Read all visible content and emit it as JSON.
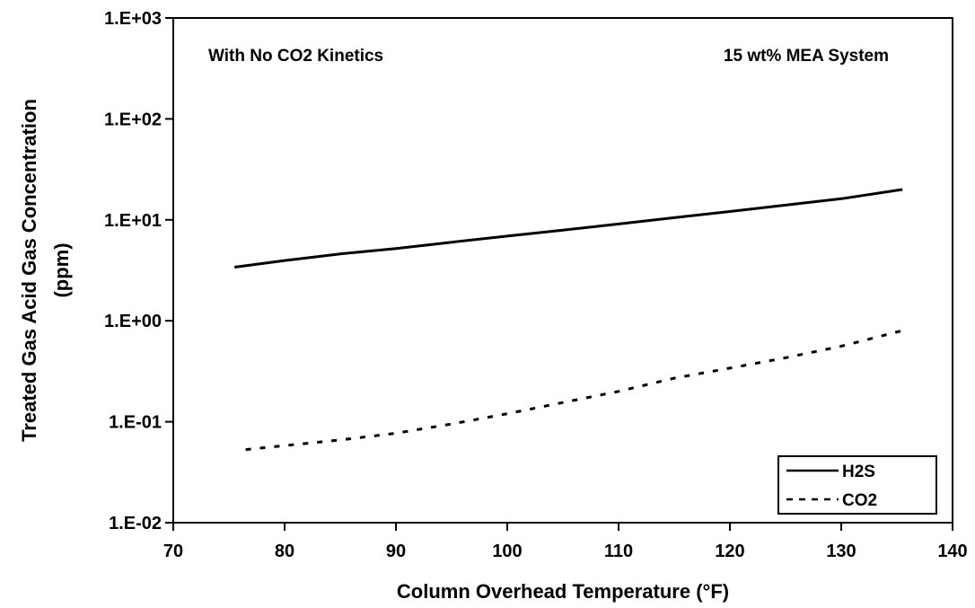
{
  "chart_data": {
    "type": "line",
    "annotations": [
      "With No CO2 Kinetics",
      "15 wt% MEA System"
    ],
    "xlabel": "Column Overhead Temperature (°F)",
    "ylabel_line1": "Treated Gas Acid Gas Concentration",
    "ylabel_line2": "(ppm)",
    "xlim": [
      70,
      140
    ],
    "ylim": [
      0.01,
      1000
    ],
    "y_scale": "log",
    "x_ticks": [
      70,
      80,
      90,
      100,
      110,
      120,
      130,
      140
    ],
    "x_tick_labels": [
      "70",
      "80",
      "90",
      "100",
      "110",
      "120",
      "130",
      "140"
    ],
    "y_ticks": [
      0.01,
      0.1,
      1,
      10,
      100,
      1000
    ],
    "y_tick_labels": [
      "1.E-02",
      "1.E-01",
      "1.E+00",
      "1.E+01",
      "1.E+02",
      "1.E+03"
    ],
    "grid": false,
    "legend_position": "bottom-right",
    "series": [
      {
        "name": "H2S",
        "style": "solid",
        "color": "#000000",
        "x": [
          75.5,
          80,
          85,
          90,
          95,
          100,
          105,
          110,
          115,
          120,
          125,
          130,
          135.5
        ],
        "y": [
          3.4,
          3.95,
          4.6,
          5.2,
          6.0,
          6.9,
          7.9,
          9.1,
          10.5,
          12.1,
          14.0,
          16.2,
          20.0
        ]
      },
      {
        "name": "CO2",
        "style": "dashed",
        "color": "#000000",
        "x": [
          76.5,
          80,
          85,
          90,
          95,
          100,
          105,
          110,
          115,
          120,
          125,
          130,
          135.5
        ],
        "y": [
          0.053,
          0.058,
          0.066,
          0.077,
          0.095,
          0.12,
          0.155,
          0.2,
          0.27,
          0.34,
          0.43,
          0.56,
          0.8
        ]
      }
    ]
  }
}
